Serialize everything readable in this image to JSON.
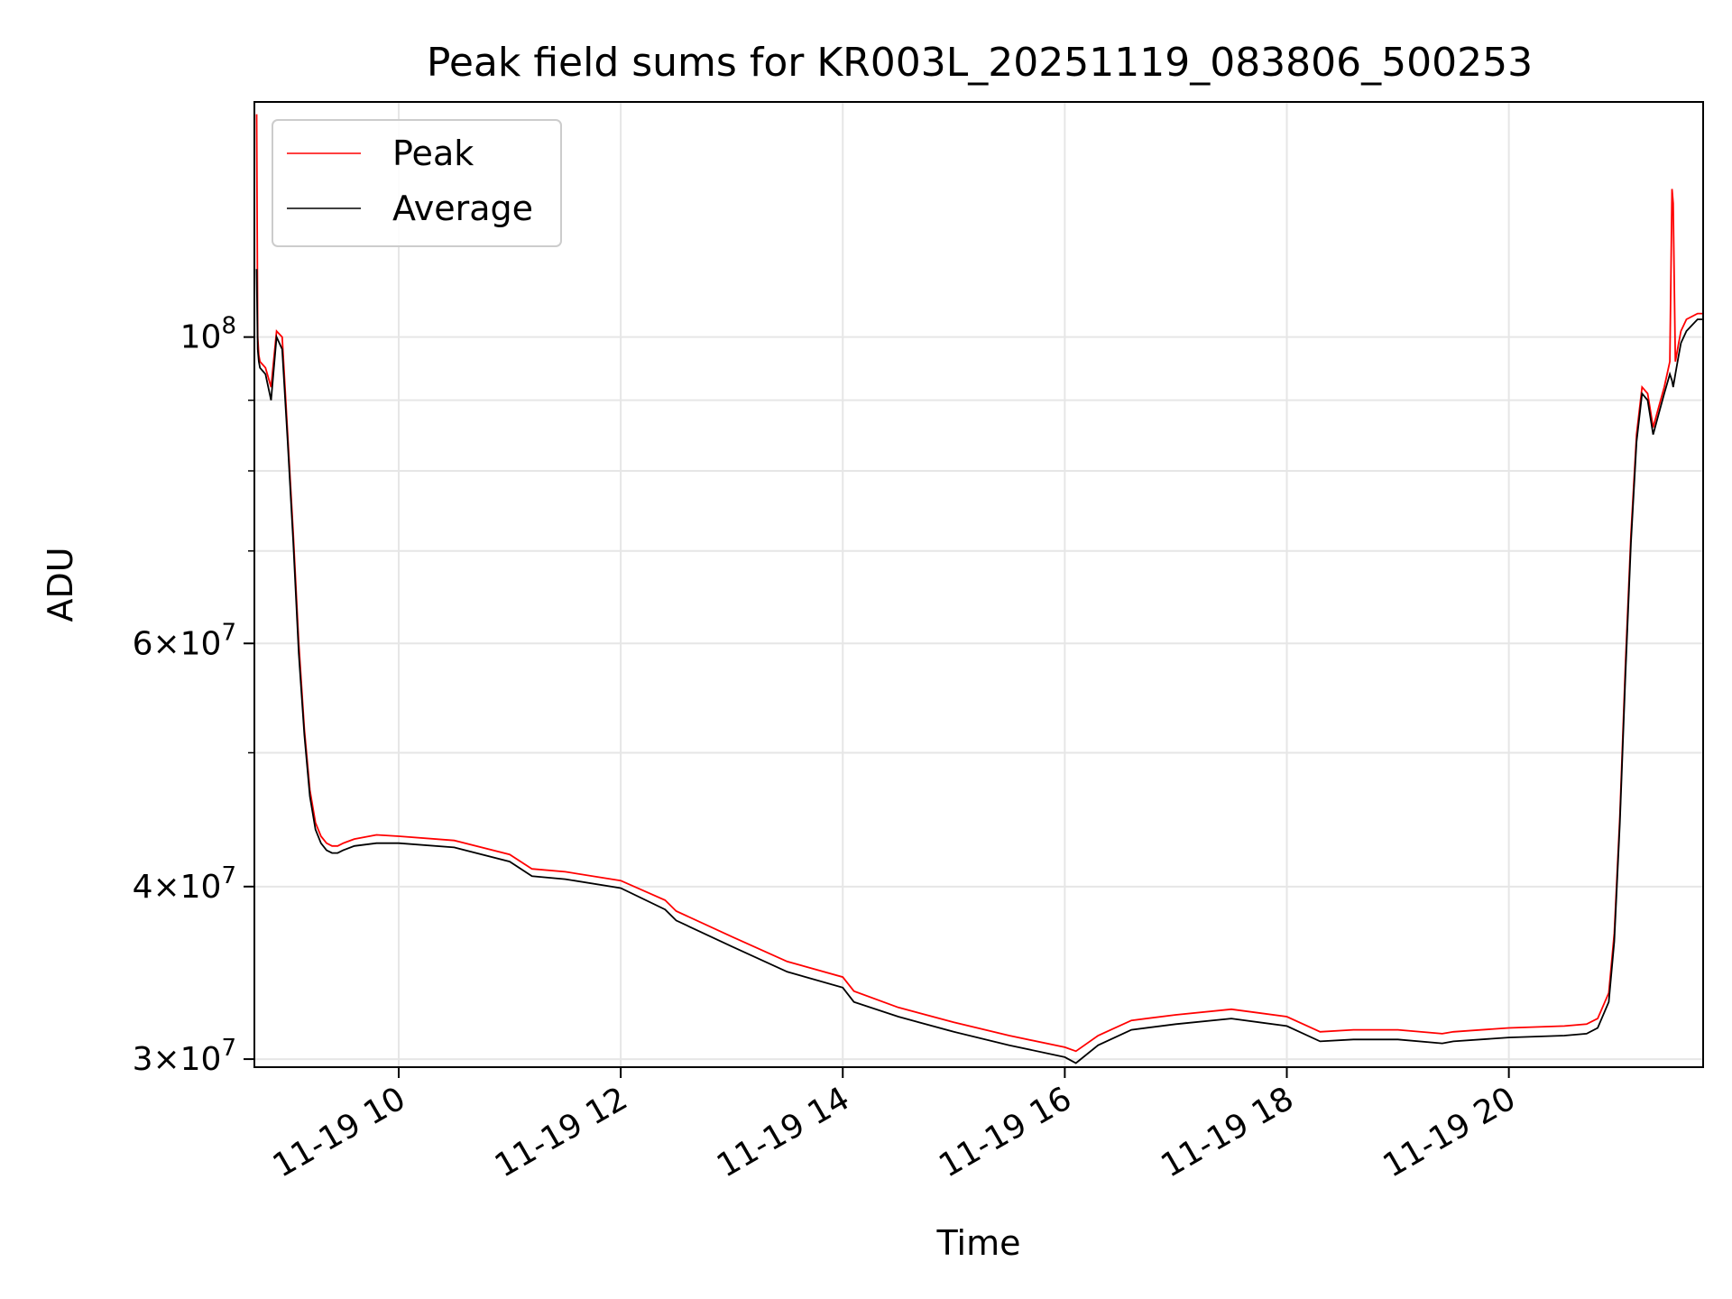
{
  "chart_data": {
    "type": "line",
    "title": "Peak field sums for KR003L_20251119_083806_500253",
    "xlabel": "Time",
    "ylabel": "ADU",
    "yscale": "log",
    "xlim": [
      8.7,
      21.75
    ],
    "ylim": [
      29600000,
      148000000
    ],
    "grid": true,
    "legend_position": "upper-left",
    "x_ticks": [
      {
        "value": 10,
        "label": "11-19 10"
      },
      {
        "value": 12,
        "label": "11-19 12"
      },
      {
        "value": 14,
        "label": "11-19 14"
      },
      {
        "value": 16,
        "label": "11-19 16"
      },
      {
        "value": 18,
        "label": "11-19 18"
      },
      {
        "value": 20,
        "label": "11-19 20"
      }
    ],
    "y_ticks": [
      {
        "value": 30000000,
        "base": "3",
        "exp": "7"
      },
      {
        "value": 40000000,
        "base": "4",
        "exp": "7"
      },
      {
        "value": 60000000,
        "base": "6",
        "exp": "7"
      },
      {
        "value": 100000000,
        "base": "",
        "exp": "8"
      }
    ],
    "y_minor_ticks": [
      50000000,
      70000000,
      80000000,
      90000000
    ],
    "series": [
      {
        "name": "Peak",
        "color": "#ff0000",
        "x": [
          8.72,
          8.73,
          8.74,
          8.75,
          8.8,
          8.85,
          8.9,
          8.95,
          9.0,
          9.05,
          9.1,
          9.15,
          9.2,
          9.25,
          9.3,
          9.35,
          9.4,
          9.45,
          9.5,
          9.6,
          9.8,
          10.0,
          10.5,
          11.0,
          11.2,
          11.5,
          12.0,
          12.4,
          12.5,
          13.0,
          13.5,
          14.0,
          14.1,
          14.5,
          15.0,
          15.5,
          16.0,
          16.1,
          16.3,
          16.6,
          17.0,
          17.5,
          18.0,
          18.3,
          18.6,
          19.0,
          19.4,
          19.5,
          20.0,
          20.5,
          20.7,
          20.8,
          20.9,
          20.95,
          21.0,
          21.05,
          21.1,
          21.15,
          21.2,
          21.25,
          21.3,
          21.35,
          21.4,
          21.45,
          21.47,
          21.48,
          21.5,
          21.53,
          21.55,
          21.6,
          21.7,
          21.75
        ],
        "values": [
          145000000,
          100000000,
          97000000,
          96000000,
          95000000,
          92000000,
          101000000,
          100000000,
          85000000,
          72000000,
          60000000,
          52000000,
          47000000,
          44500000,
          43500000,
          43000000,
          42800000,
          42800000,
          43000000,
          43300000,
          43600000,
          43500000,
          43200000,
          42200000,
          41200000,
          41000000,
          40400000,
          39100000,
          38400000,
          36800000,
          35300000,
          34400000,
          33600000,
          32700000,
          31900000,
          31200000,
          30600000,
          30400000,
          31200000,
          32000000,
          32300000,
          32600000,
          32200000,
          31400000,
          31500000,
          31500000,
          31300000,
          31400000,
          31600000,
          31700000,
          31800000,
          32100000,
          33500000,
          37000000,
          45000000,
          58000000,
          72000000,
          85000000,
          92000000,
          91000000,
          86000000,
          89000000,
          92000000,
          96000000,
          128000000,
          125000000,
          96000000,
          99000000,
          101000000,
          103000000,
          104000000,
          104000000
        ]
      },
      {
        "name": "Average",
        "color": "#000000",
        "x": [
          8.72,
          8.73,
          8.74,
          8.75,
          8.8,
          8.85,
          8.9,
          8.95,
          9.0,
          9.05,
          9.1,
          9.15,
          9.2,
          9.25,
          9.3,
          9.35,
          9.4,
          9.45,
          9.5,
          9.6,
          9.8,
          10.0,
          10.5,
          11.0,
          11.2,
          11.5,
          12.0,
          12.4,
          12.5,
          13.0,
          13.5,
          14.0,
          14.1,
          14.5,
          15.0,
          15.5,
          16.0,
          16.1,
          16.3,
          16.6,
          17.0,
          17.5,
          18.0,
          18.3,
          18.6,
          19.0,
          19.4,
          19.5,
          20.0,
          20.5,
          20.7,
          20.8,
          20.9,
          20.95,
          21.0,
          21.05,
          21.1,
          21.15,
          21.2,
          21.25,
          21.3,
          21.35,
          21.4,
          21.45,
          21.47,
          21.48,
          21.5,
          21.53,
          21.55,
          21.6,
          21.7,
          21.75
        ],
        "values": [
          112000000,
          98000000,
          96000000,
          95000000,
          94000000,
          90000000,
          100000000,
          98000000,
          84000000,
          71000000,
          59000000,
          51500000,
          46500000,
          44000000,
          43000000,
          42500000,
          42300000,
          42300000,
          42500000,
          42800000,
          43000000,
          43000000,
          42700000,
          41700000,
          40700000,
          40500000,
          39900000,
          38500000,
          37800000,
          36200000,
          34700000,
          33800000,
          33000000,
          32200000,
          31400000,
          30700000,
          30100000,
          29800000,
          30700000,
          31500000,
          31800000,
          32100000,
          31700000,
          30900000,
          31000000,
          31000000,
          30800000,
          30900000,
          31100000,
          31200000,
          31300000,
          31600000,
          33000000,
          36500000,
          44500000,
          57000000,
          71000000,
          84000000,
          91000000,
          90000000,
          85000000,
          88000000,
          91000000,
          94000000,
          93000000,
          92000000,
          94000000,
          97000000,
          99000000,
          101000000,
          103000000,
          103000000
        ]
      }
    ]
  }
}
